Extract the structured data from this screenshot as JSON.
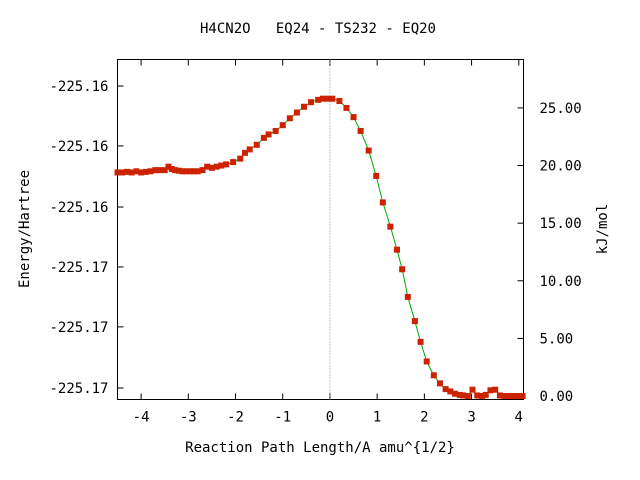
{
  "chart_data": {
    "type": "line",
    "title": "H4CN2O   EQ24 - TS232 - EQ20",
    "xlabel": "Reaction Path Length/A amu^{1/2}",
    "ylabel_left": "Energy/Hartree",
    "ylabel_right": "kJ/mol",
    "xlim": [
      -4.5,
      4.1
    ],
    "ylim_right": [
      -0.3,
      29.2
    ],
    "x_ticks": [
      "-4",
      "-3",
      "-2",
      "-1",
      "0",
      "1",
      "2",
      "3",
      "4"
    ],
    "x_tick_values": [
      -4,
      -3,
      -2,
      -1,
      0,
      1,
      2,
      3,
      4
    ],
    "left_ticks": [
      "-225.16",
      "-225.16",
      "-225.16",
      "-225.17",
      "-225.17",
      "-225.17"
    ],
    "left_tick_values_kjmol": [
      26.9,
      21.7,
      16.4,
      11.2,
      6.0,
      0.7
    ],
    "right_ticks": [
      "25.00",
      "20.00",
      "15.00",
      "10.00",
      "5.00",
      "0.00"
    ],
    "right_tick_values": [
      25,
      20,
      15,
      10,
      5,
      0
    ],
    "ts_x": 0,
    "line_color": "#00aa00",
    "marker_color": "#cc2200",
    "guide_color": "#999999",
    "series": [
      {
        "x": [
          -4.5,
          -4.4,
          -4.3,
          -4.2,
          -4.1,
          -4.0,
          -3.9,
          -3.8,
          -3.7,
          -3.6,
          -3.5,
          -3.42,
          -3.35,
          -3.28,
          -3.2,
          -3.12,
          -3.05,
          -2.95,
          -2.88,
          -2.8,
          -2.7,
          -2.6,
          -2.5,
          -2.4,
          -2.3,
          -2.2,
          -2.05,
          -1.9,
          -1.8,
          -1.7,
          -1.55,
          -1.4,
          -1.3,
          -1.15,
          -1.0,
          -0.85,
          -0.7,
          -0.55,
          -0.4,
          -0.25,
          -0.15,
          -0.05,
          0.05,
          0.2,
          0.35,
          0.5,
          0.65,
          0.82,
          0.98,
          1.12,
          1.28,
          1.42,
          1.53,
          1.65,
          1.8,
          1.92,
          2.05,
          2.2,
          2.33,
          2.45,
          2.55,
          2.65,
          2.75,
          2.82,
          2.92,
          3.02,
          3.12,
          3.22,
          3.3,
          3.4,
          3.5,
          3.6,
          3.7,
          3.78,
          3.86,
          3.93,
          4.0,
          4.08
        ],
        "y": [
          19.4,
          19.4,
          19.45,
          19.4,
          19.5,
          19.4,
          19.45,
          19.5,
          19.6,
          19.6,
          19.6,
          19.9,
          19.7,
          19.6,
          19.55,
          19.5,
          19.5,
          19.5,
          19.5,
          19.5,
          19.6,
          19.9,
          19.8,
          19.9,
          20.0,
          20.1,
          20.3,
          20.6,
          21.1,
          21.4,
          21.8,
          22.4,
          22.7,
          23.0,
          23.5,
          24.1,
          24.6,
          25.1,
          25.5,
          25.7,
          25.8,
          25.8,
          25.8,
          25.6,
          25.0,
          24.2,
          23.0,
          21.3,
          19.1,
          16.8,
          14.7,
          12.7,
          11.0,
          8.6,
          6.5,
          4.7,
          3.0,
          1.8,
          1.1,
          0.6,
          0.4,
          0.2,
          0.1,
          0.05,
          0.0,
          0.55,
          0.05,
          0.0,
          0.1,
          0.5,
          0.55,
          0.05,
          0.0,
          0.0,
          0.0,
          0.0,
          0.0,
          0.0
        ]
      }
    ]
  }
}
